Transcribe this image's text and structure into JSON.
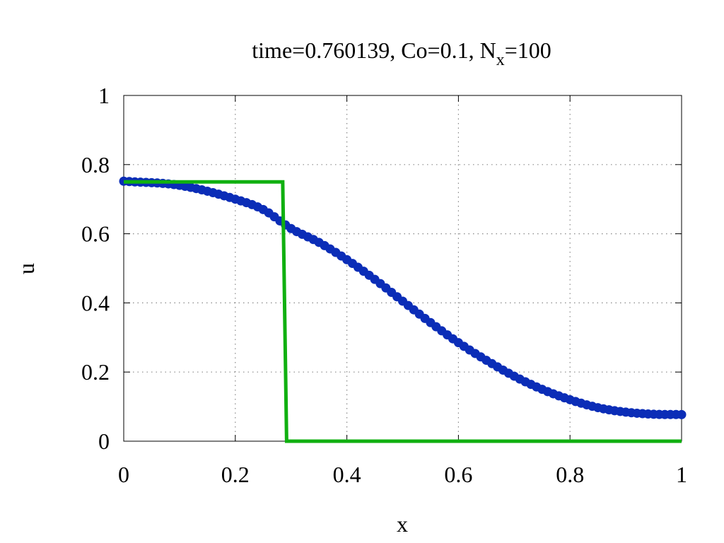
{
  "chart_data": {
    "type": "line",
    "title": {
      "prefix": "time=0.760139, Co=0.1, N",
      "subscript": "x",
      "suffix": "=100"
    },
    "xlabel": "x",
    "ylabel": "u",
    "xlim": [
      0,
      1
    ],
    "ylim": [
      0,
      1
    ],
    "grid": true,
    "x_ticks": [
      {
        "value": 0,
        "label": "0"
      },
      {
        "value": 0.2,
        "label": "0.2"
      },
      {
        "value": 0.4,
        "label": "0.4"
      },
      {
        "value": 0.6,
        "label": "0.6"
      },
      {
        "value": 0.8,
        "label": "0.8"
      },
      {
        "value": 1,
        "label": "1"
      }
    ],
    "y_ticks": [
      {
        "value": 0,
        "label": "0"
      },
      {
        "value": 0.2,
        "label": "0.2"
      },
      {
        "value": 0.4,
        "label": "0.4"
      },
      {
        "value": 0.6,
        "label": "0.6"
      },
      {
        "value": 0.8,
        "label": "0.8"
      },
      {
        "value": 1,
        "label": "1"
      }
    ],
    "series": [
      {
        "style": "points",
        "color": "#0b2db7",
        "x": [
          0,
          0.1,
          0.2,
          0.25,
          0.3,
          0.35,
          0.4,
          0.45,
          0.5,
          0.55,
          0.6,
          0.65,
          0.7,
          0.75,
          0.8,
          0.85,
          0.9,
          0.95,
          1.0
        ],
        "y": [
          0.752,
          0.74,
          0.7,
          0.67,
          0.615,
          0.575,
          0.525,
          0.468,
          0.405,
          0.343,
          0.285,
          0.234,
          0.188,
          0.15,
          0.12,
          0.097,
          0.084,
          0.078,
          0.077
        ]
      },
      {
        "style": "line",
        "color": "#10b010",
        "x": [
          0,
          0.285,
          0.292,
          1.0
        ],
        "y": [
          0.75,
          0.75,
          0,
          0
        ]
      }
    ]
  }
}
